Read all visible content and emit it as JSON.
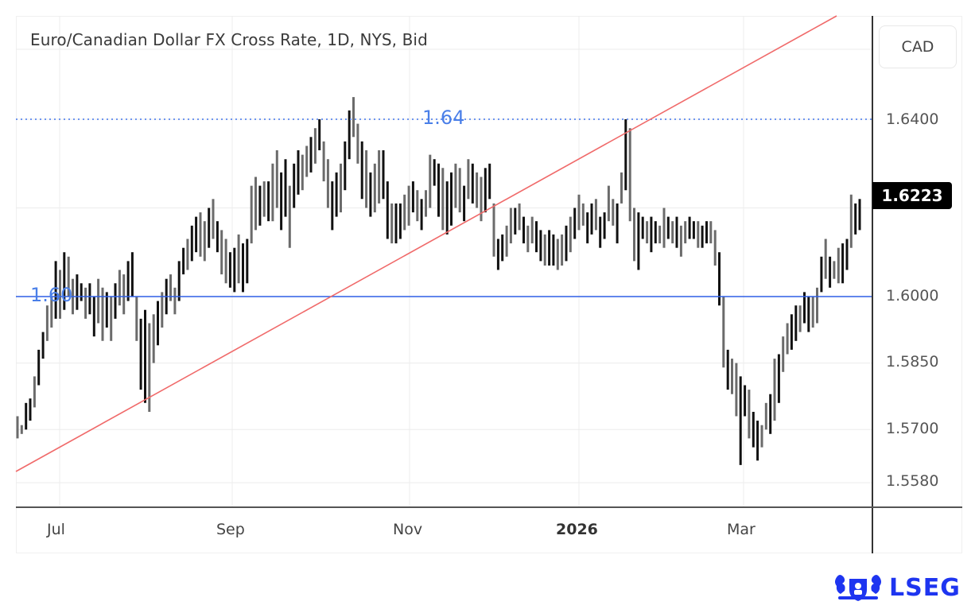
{
  "title": "Euro/Canadian Dollar FX Cross Rate, 1D, NYS, Bid",
  "currency_label": "CAD",
  "last_price": "1.6223",
  "brand": "LSEG",
  "levels": {
    "upper_label": "1.64",
    "lower_label": "1.60"
  },
  "colors": {
    "bars_dark": "#111111",
    "bars_grey": "#6b6b6b",
    "trendline": "#f06a6a",
    "level_line": "#2e5ee6",
    "level_dotted": "#6e96f0",
    "grid": "#ececec",
    "brand": "#1e35f0"
  },
  "chart_data": {
    "type": "ohlc-bar",
    "title": "Euro/Canadian Dollar FX Cross Rate, 1D, NYS, Bid",
    "xlabel": "",
    "ylabel": "CAD",
    "ylim": [
      1.552,
      1.6445
    ],
    "y_ticks": [
      "1.6400",
      "1.6223",
      "1.6000",
      "1.5850",
      "1.5700",
      "1.5580"
    ],
    "x_ticks": [
      "Jul",
      "Sep",
      "Nov",
      "2026",
      "Mar"
    ],
    "grid": true,
    "last_value": 1.6223,
    "annotations": [
      {
        "type": "horizontal_line",
        "value": 1.6,
        "label": "1.60",
        "style": "solid",
        "color": "#2e5ee6"
      },
      {
        "type": "horizontal_line",
        "value": 1.64,
        "label": "1.64",
        "style": "dotted",
        "color": "#6e96f0"
      },
      {
        "type": "trendline",
        "from": {
          "x": "late Jun",
          "y": 1.5565
        },
        "to": {
          "x": "mid Feb",
          "y": 1.6575
        },
        "color": "#f06a6a"
      }
    ],
    "bars": [
      [
        1.573,
        1.568
      ],
      [
        1.571,
        1.569
      ],
      [
        1.576,
        1.57
      ],
      [
        1.577,
        1.572
      ],
      [
        1.582,
        1.575
      ],
      [
        1.588,
        1.58
      ],
      [
        1.592,
        1.586
      ],
      [
        1.598,
        1.59
      ],
      [
        1.6,
        1.593
      ],
      [
        1.608,
        1.595
      ],
      [
        1.606,
        1.595
      ],
      [
        1.61,
        1.597
      ],
      [
        1.609,
        1.6
      ],
      [
        1.604,
        1.596
      ],
      [
        1.605,
        1.597
      ],
      [
        1.603,
        1.599
      ],
      [
        1.602,
        1.595
      ],
      [
        1.603,
        1.596
      ],
      [
        1.6,
        1.591
      ],
      [
        1.604,
        1.594
      ],
      [
        1.602,
        1.59
      ],
      [
        1.601,
        1.593
      ],
      [
        1.6,
        1.59
      ],
      [
        1.603,
        1.595
      ],
      [
        1.606,
        1.598
      ],
      [
        1.605,
        1.596
      ],
      [
        1.608,
        1.599
      ],
      [
        1.61,
        1.6
      ],
      [
        1.6,
        1.59
      ],
      [
        1.595,
        1.579
      ],
      [
        1.597,
        1.576
      ],
      [
        1.594,
        1.574
      ],
      [
        1.596,
        1.585
      ],
      [
        1.599,
        1.589
      ],
      [
        1.601,
        1.593
      ],
      [
        1.604,
        1.596
      ],
      [
        1.605,
        1.599
      ],
      [
        1.602,
        1.596
      ],
      [
        1.608,
        1.599
      ],
      [
        1.611,
        1.605
      ],
      [
        1.613,
        1.606
      ],
      [
        1.616,
        1.608
      ],
      [
        1.618,
        1.61
      ],
      [
        1.619,
        1.609
      ],
      [
        1.617,
        1.608
      ],
      [
        1.62,
        1.611
      ],
      [
        1.622,
        1.613
      ],
      [
        1.617,
        1.61
      ],
      [
        1.615,
        1.605
      ],
      [
        1.613,
        1.603
      ],
      [
        1.61,
        1.602
      ],
      [
        1.611,
        1.601
      ],
      [
        1.614,
        1.603
      ],
      [
        1.612,
        1.601
      ],
      [
        1.613,
        1.603
      ],
      [
        1.625,
        1.612
      ],
      [
        1.627,
        1.615
      ],
      [
        1.625,
        1.616
      ],
      [
        1.626,
        1.618
      ],
      [
        1.626,
        1.617
      ],
      [
        1.63,
        1.617
      ],
      [
        1.633,
        1.62
      ],
      [
        1.628,
        1.615
      ],
      [
        1.631,
        1.618
      ],
      [
        1.625,
        1.611
      ],
      [
        1.63,
        1.62
      ],
      [
        1.633,
        1.623
      ],
      [
        1.632,
        1.624
      ],
      [
        1.634,
        1.627
      ],
      [
        1.636,
        1.628
      ],
      [
        1.638,
        1.63
      ],
      [
        1.64,
        1.633
      ],
      [
        1.635,
        1.626
      ],
      [
        1.631,
        1.62
      ],
      [
        1.626,
        1.615
      ],
      [
        1.628,
        1.618
      ],
      [
        1.63,
        1.619
      ],
      [
        1.635,
        1.624
      ],
      [
        1.642,
        1.631
      ],
      [
        1.645,
        1.636
      ],
      [
        1.639,
        1.63
      ],
      [
        1.635,
        1.622
      ],
      [
        1.633,
        1.62
      ],
      [
        1.628,
        1.618
      ],
      [
        1.63,
        1.619
      ],
      [
        1.633,
        1.621
      ],
      [
        1.633,
        1.622
      ],
      [
        1.626,
        1.613
      ],
      [
        1.621,
        1.612
      ],
      [
        1.621,
        1.612
      ],
      [
        1.621,
        1.613
      ],
      [
        1.623,
        1.615
      ],
      [
        1.625,
        1.616
      ],
      [
        1.626,
        1.619
      ],
      [
        1.624,
        1.617
      ],
      [
        1.622,
        1.615
      ],
      [
        1.624,
        1.618
      ],
      [
        1.632,
        1.62
      ],
      [
        1.631,
        1.625
      ],
      [
        1.63,
        1.618
      ],
      [
        1.629,
        1.615
      ],
      [
        1.626,
        1.614
      ],
      [
        1.628,
        1.616
      ],
      [
        1.63,
        1.62
      ],
      [
        1.629,
        1.619
      ],
      [
        1.625,
        1.617
      ],
      [
        1.631,
        1.622
      ],
      [
        1.63,
        1.621
      ],
      [
        1.628,
        1.62
      ],
      [
        1.627,
        1.617
      ],
      [
        1.629,
        1.619
      ],
      [
        1.63,
        1.622
      ],
      [
        1.621,
        1.609
      ],
      [
        1.613,
        1.606
      ],
      [
        1.614,
        1.608
      ],
      [
        1.616,
        1.609
      ],
      [
        1.62,
        1.612
      ],
      [
        1.62,
        1.614
      ],
      [
        1.621,
        1.615
      ],
      [
        1.618,
        1.612
      ],
      [
        1.616,
        1.61
      ],
      [
        1.618,
        1.612
      ],
      [
        1.617,
        1.61
      ],
      [
        1.615,
        1.608
      ],
      [
        1.614,
        1.607
      ],
      [
        1.615,
        1.607
      ],
      [
        1.614,
        1.607
      ],
      [
        1.613,
        1.606
      ],
      [
        1.614,
        1.607
      ],
      [
        1.616,
        1.608
      ],
      [
        1.618,
        1.61
      ],
      [
        1.62,
        1.613
      ],
      [
        1.623,
        1.615
      ],
      [
        1.621,
        1.616
      ],
      [
        1.619,
        1.612
      ],
      [
        1.621,
        1.614
      ],
      [
        1.622,
        1.615
      ],
      [
        1.618,
        1.611
      ],
      [
        1.619,
        1.613
      ],
      [
        1.625,
        1.617
      ],
      [
        1.622,
        1.616
      ],
      [
        1.621,
        1.612
      ],
      [
        1.628,
        1.621
      ],
      [
        1.64,
        1.624
      ],
      [
        1.638,
        1.617
      ],
      [
        1.62,
        1.608
      ],
      [
        1.619,
        1.606
      ],
      [
        1.618,
        1.613
      ],
      [
        1.617,
        1.612
      ],
      [
        1.618,
        1.61
      ],
      [
        1.617,
        1.612
      ],
      [
        1.616,
        1.612
      ],
      [
        1.62,
        1.611
      ],
      [
        1.618,
        1.613
      ],
      [
        1.617,
        1.612
      ],
      [
        1.618,
        1.611
      ],
      [
        1.616,
        1.609
      ],
      [
        1.617,
        1.612
      ],
      [
        1.618,
        1.613
      ],
      [
        1.617,
        1.613
      ],
      [
        1.617,
        1.611
      ],
      [
        1.616,
        1.611
      ],
      [
        1.617,
        1.612
      ],
      [
        1.617,
        1.612
      ],
      [
        1.615,
        1.607
      ],
      [
        1.61,
        1.598
      ],
      [
        1.6,
        1.584
      ],
      [
        1.588,
        1.579
      ],
      [
        1.586,
        1.578
      ],
      [
        1.585,
        1.573
      ],
      [
        1.582,
        1.562
      ],
      [
        1.58,
        1.573
      ],
      [
        1.579,
        1.568
      ],
      [
        1.574,
        1.566
      ],
      [
        1.572,
        1.563
      ],
      [
        1.571,
        1.566
      ],
      [
        1.576,
        1.57
      ],
      [
        1.578,
        1.569
      ],
      [
        1.586,
        1.572
      ],
      [
        1.587,
        1.576
      ],
      [
        1.591,
        1.583
      ],
      [
        1.594,
        1.587
      ],
      [
        1.596,
        1.588
      ],
      [
        1.598,
        1.59
      ],
      [
        1.598,
        1.592
      ],
      [
        1.601,
        1.594
      ],
      [
        1.6,
        1.592
      ],
      [
        1.6,
        1.593
      ],
      [
        1.602,
        1.594
      ],
      [
        1.609,
        1.601
      ],
      [
        1.613,
        1.604
      ],
      [
        1.609,
        1.602
      ],
      [
        1.608,
        1.604
      ],
      [
        1.611,
        1.603
      ],
      [
        1.612,
        1.603
      ],
      [
        1.613,
        1.606
      ],
      [
        1.623,
        1.611
      ],
      [
        1.621,
        1.614
      ],
      [
        1.622,
        1.615
      ]
    ]
  }
}
